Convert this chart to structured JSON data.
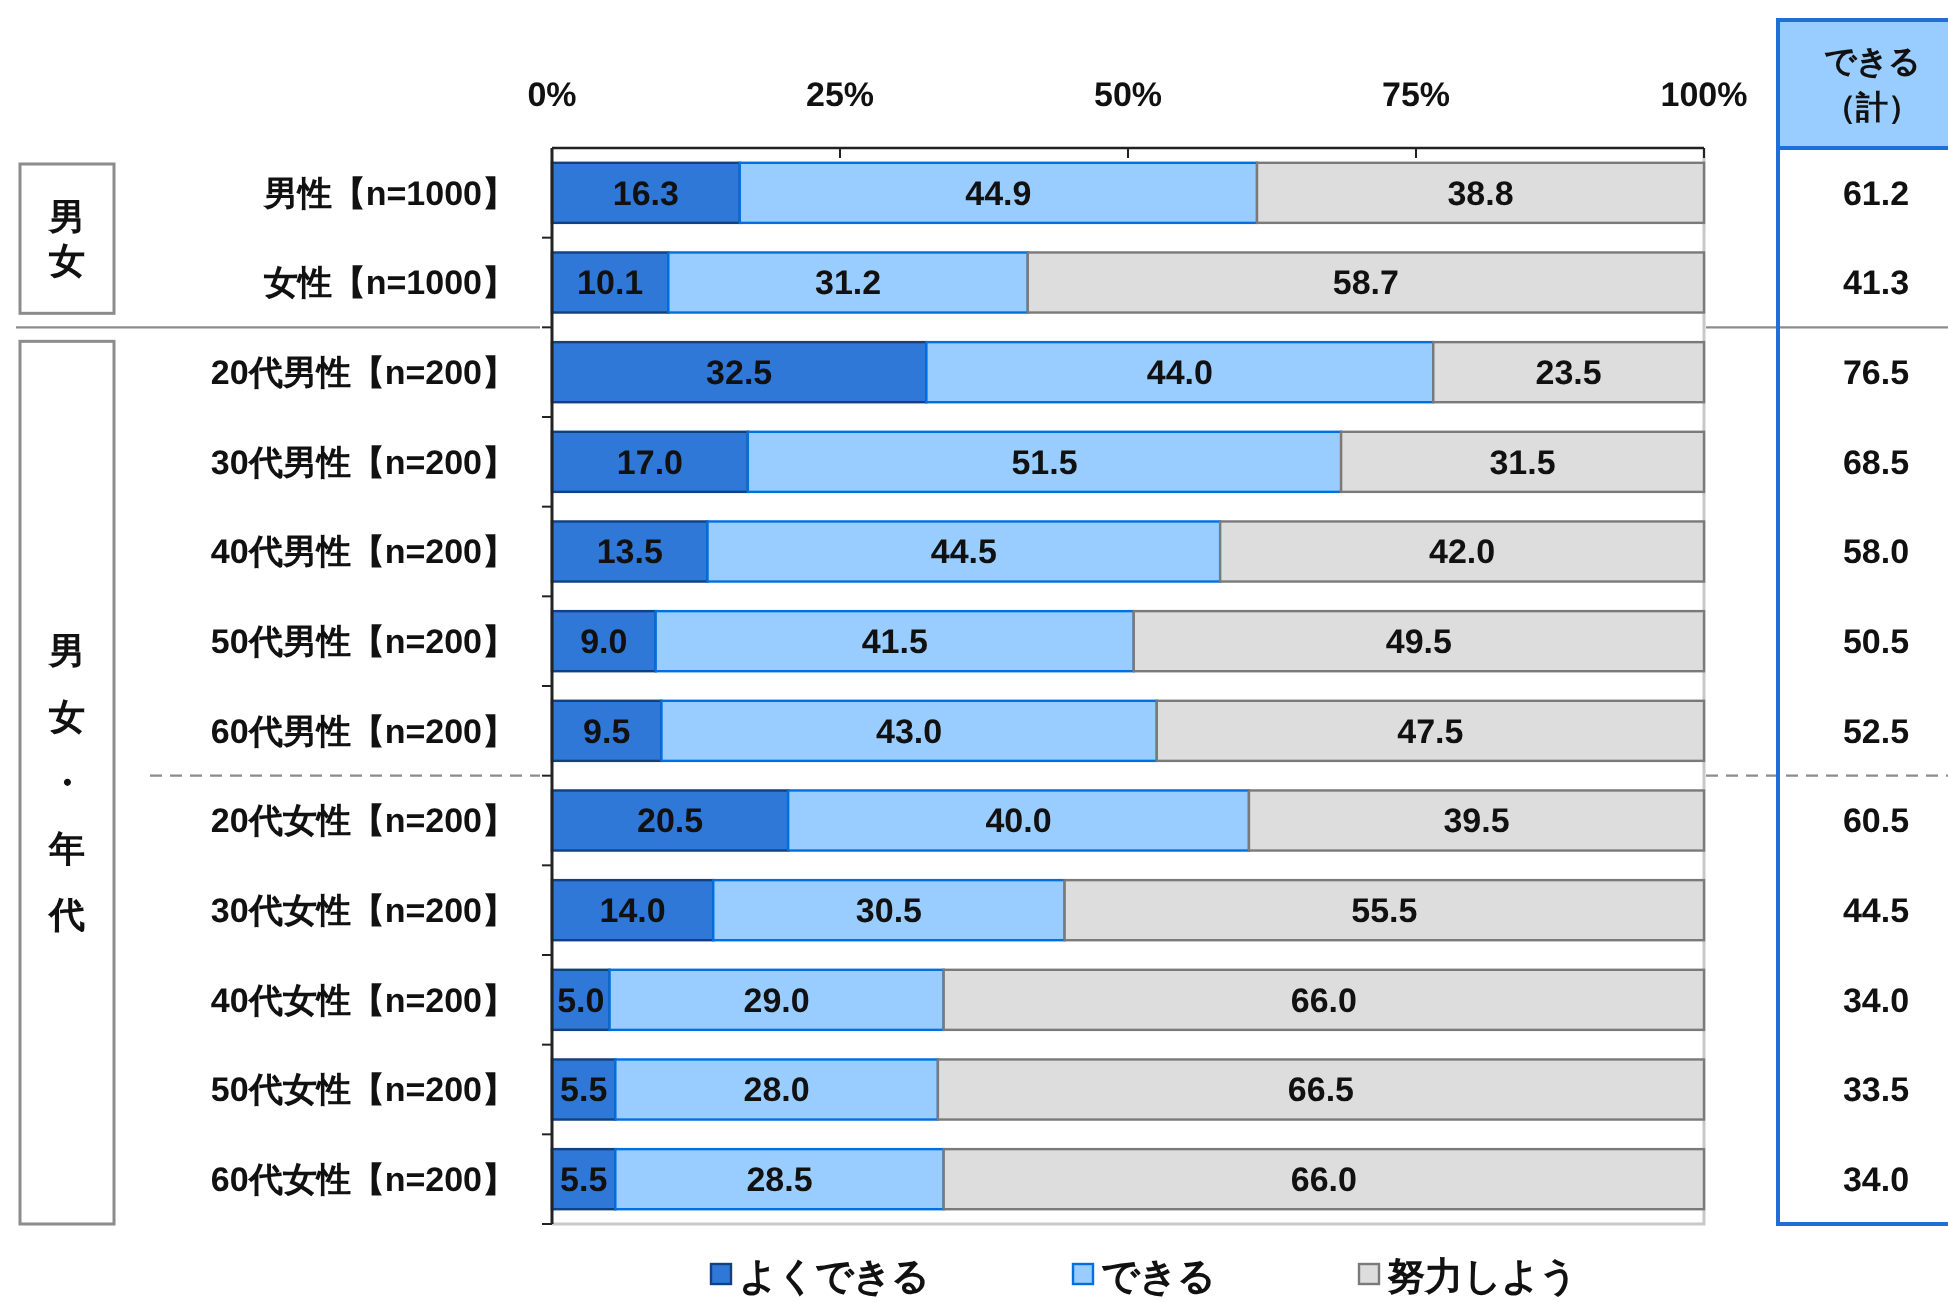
{
  "chart_data": {
    "type": "bar",
    "orientation": "horizontal",
    "stacked": true,
    "categories": [
      "男性【n=1000】",
      "女性【n=1000】",
      "20代男性【n=200】",
      "30代男性【n=200】",
      "40代男性【n=200】",
      "50代男性【n=200】",
      "60代男性【n=200】",
      "20代女性【n=200】",
      "30代女性【n=200】",
      "40代女性【n=200】",
      "50代女性【n=200】",
      "60代女性【n=200】"
    ],
    "series": [
      {
        "name": "よくできる",
        "color": "#2f78d8",
        "values": [
          16.3,
          10.1,
          32.5,
          17.0,
          13.5,
          9.0,
          9.5,
          20.5,
          14.0,
          5.0,
          5.5,
          5.5
        ],
        "value_labels": [
          "16.3",
          "10.1",
          "32.5",
          "17.0",
          "13.5",
          "9.0",
          "9.5",
          "20.5",
          "14.0",
          "5.0",
          "5.5",
          "5.5"
        ]
      },
      {
        "name": "できる",
        "color": "#99ccff",
        "values": [
          44.9,
          31.2,
          44.0,
          51.5,
          44.5,
          41.5,
          43.0,
          40.0,
          30.5,
          29.0,
          28.0,
          28.5
        ],
        "value_labels": [
          "44.9",
          "31.2",
          "44.0",
          "51.5",
          "44.5",
          "41.5",
          "43.0",
          "40.0",
          "30.5",
          "29.0",
          "28.0",
          "28.5"
        ]
      },
      {
        "name": "努力しよう",
        "color": "#dddddd",
        "values": [
          38.8,
          58.7,
          23.5,
          31.5,
          42.0,
          49.5,
          47.5,
          39.5,
          55.5,
          66.0,
          66.5,
          66.0
        ],
        "value_labels": [
          "38.8",
          "58.7",
          "23.5",
          "31.5",
          "42.0",
          "49.5",
          "47.5",
          "39.5",
          "55.5",
          "66.0",
          "66.5",
          "66.0"
        ]
      }
    ],
    "xlim": [
      0,
      100
    ],
    "xticks": [
      {
        "value": 0,
        "label": "0%"
      },
      {
        "value": 25,
        "label": "25%"
      },
      {
        "value": 50,
        "label": "50%"
      },
      {
        "value": 75,
        "label": "75%"
      },
      {
        "value": 100,
        "label": "100%"
      }
    ],
    "legend": "bottom",
    "annotations": [
      "男女",
      "男女・年代",
      "できる（計）",
      "61.2",
      "41.3",
      "76.5",
      "68.5",
      "58.0",
      "50.5",
      "52.5",
      "60.5",
      "44.5",
      "34.0",
      "33.5",
      "34.0"
    ]
  }
}
